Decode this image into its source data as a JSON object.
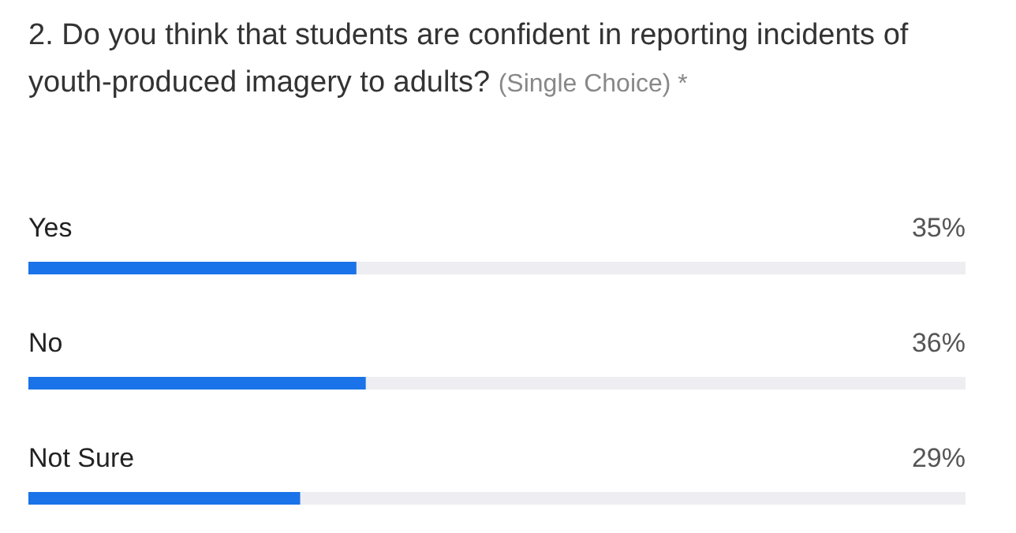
{
  "chart_data": {
    "type": "bar",
    "orientation": "horizontal",
    "title": "2. Do you think that students are confident in reporting incidents of youth-produced imagery to adults?",
    "subtitle": "(Single Choice) *",
    "categories": [
      "Yes",
      "No",
      "Not Sure"
    ],
    "values": [
      35,
      36,
      29
    ],
    "value_labels": [
      "35%",
      "36%",
      "29%"
    ],
    "color": "#1a73e8",
    "xlim": [
      0,
      100
    ]
  }
}
